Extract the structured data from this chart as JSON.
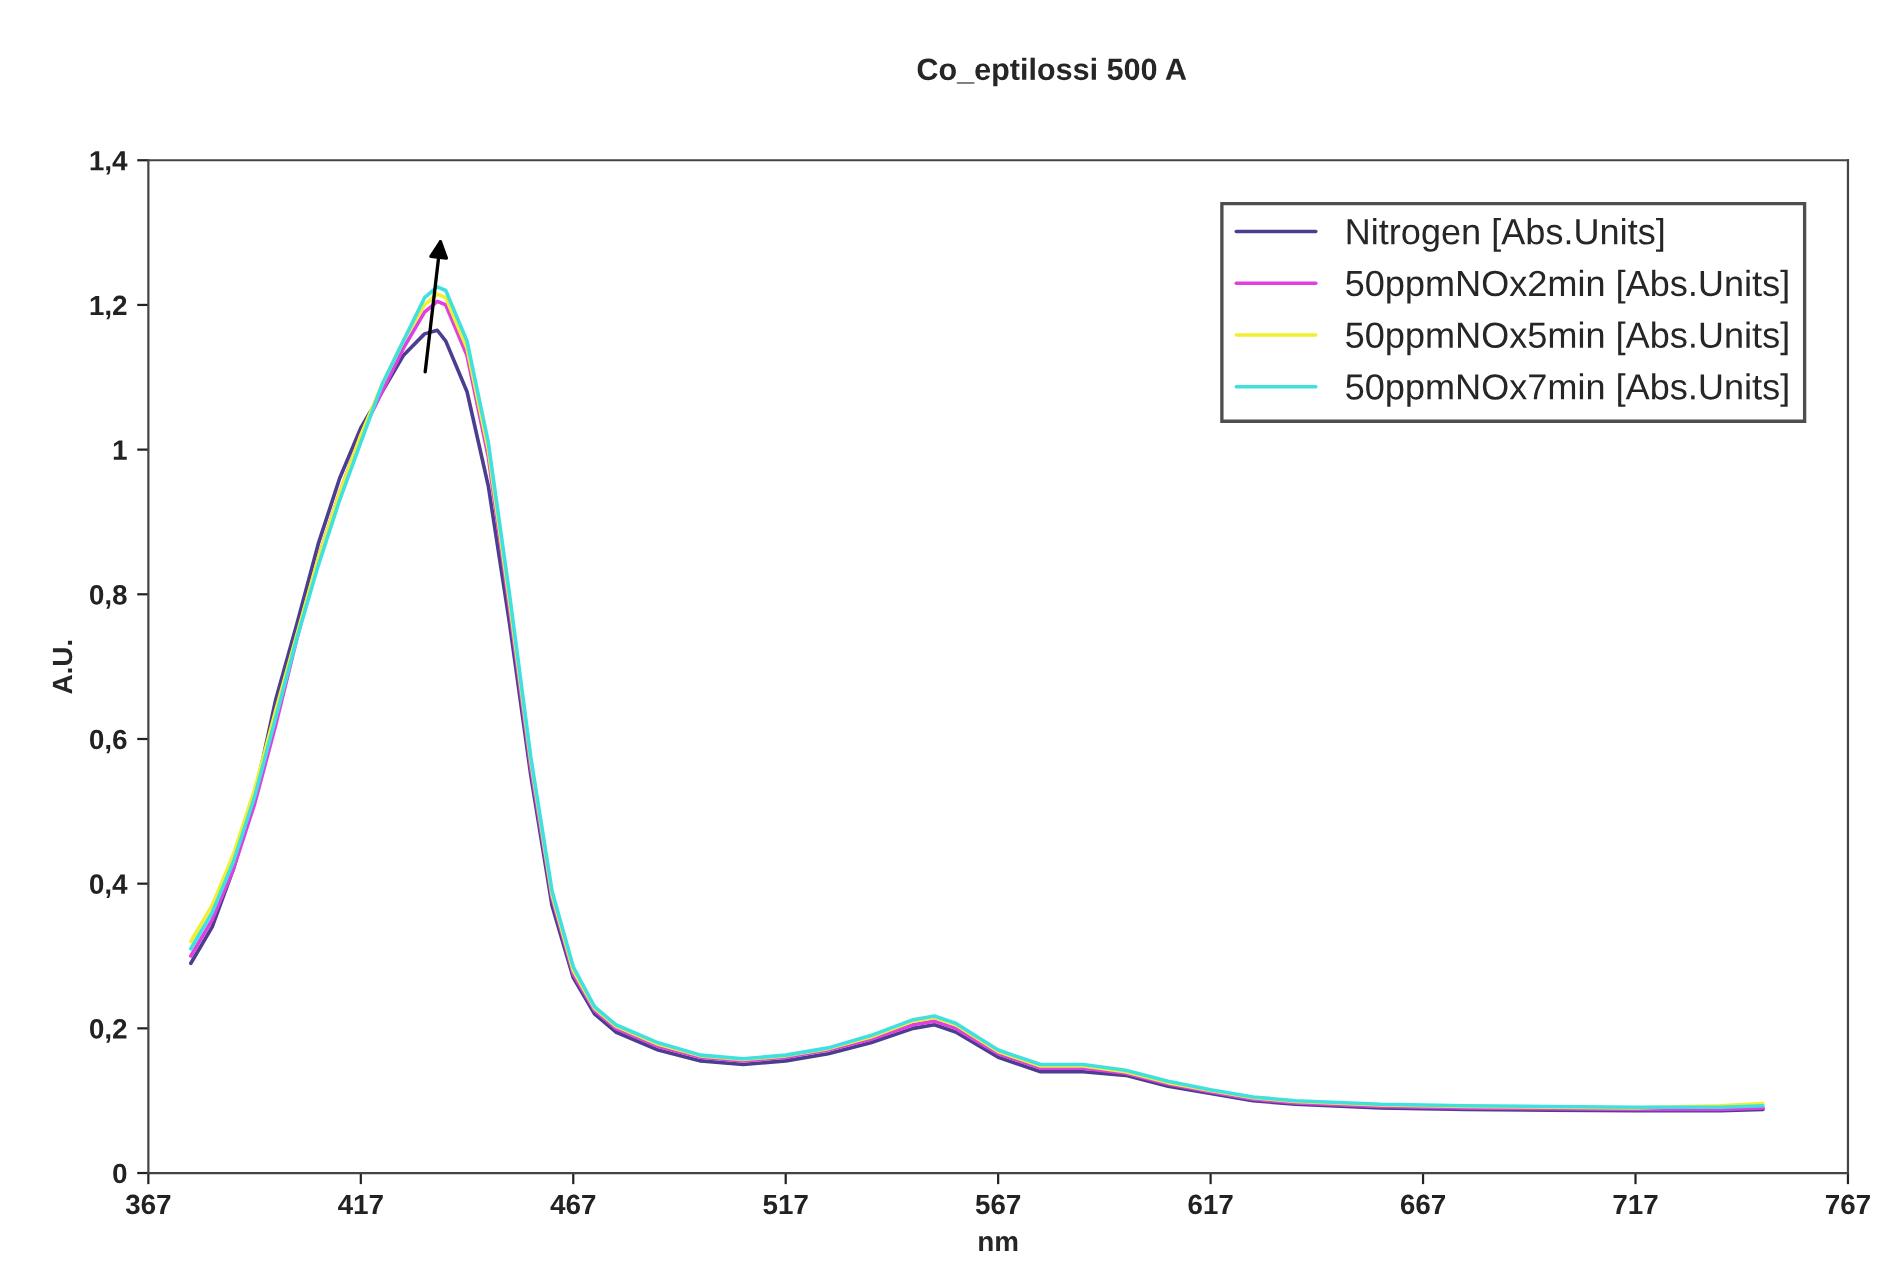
{
  "chart_data": {
    "type": "line",
    "title": "Co_eptilossi 500 A",
    "xlabel": "nm",
    "ylabel": "A.U.",
    "x": [
      377,
      382,
      387,
      392,
      397,
      402,
      407,
      412,
      417,
      422,
      427,
      432,
      435,
      437,
      442,
      447,
      452,
      457,
      462,
      467,
      472,
      477,
      487,
      497,
      507,
      517,
      527,
      537,
      547,
      552,
      557,
      567,
      577,
      587,
      597,
      607,
      617,
      627,
      637,
      657,
      677,
      697,
      717,
      737,
      747
    ],
    "series": [
      {
        "name": "Nitrogen [Abs.Units]",
        "color": "#4b3d8f",
        "values": [
          0.29,
          0.34,
          0.42,
          0.52,
          0.655,
          0.76,
          0.87,
          0.96,
          1.03,
          1.08,
          1.13,
          1.16,
          1.165,
          1.15,
          1.08,
          0.95,
          0.76,
          0.55,
          0.37,
          0.27,
          0.22,
          0.195,
          0.17,
          0.155,
          0.15,
          0.155,
          0.165,
          0.18,
          0.2,
          0.205,
          0.195,
          0.16,
          0.14,
          0.14,
          0.135,
          0.12,
          0.11,
          0.1,
          0.095,
          0.09,
          0.088,
          0.087,
          0.086,
          0.086,
          0.088
        ]
      },
      {
        "name": "50ppmNOx2min [Abs.Units]",
        "color": "#e040e0",
        "values": [
          0.3,
          0.35,
          0.42,
          0.51,
          0.62,
          0.74,
          0.85,
          0.94,
          1.02,
          1.08,
          1.14,
          1.19,
          1.205,
          1.2,
          1.13,
          0.99,
          0.78,
          0.56,
          0.38,
          0.275,
          0.225,
          0.2,
          0.175,
          0.16,
          0.155,
          0.16,
          0.17,
          0.185,
          0.205,
          0.21,
          0.2,
          0.165,
          0.145,
          0.145,
          0.138,
          0.123,
          0.112,
          0.102,
          0.097,
          0.092,
          0.09,
          0.089,
          0.088,
          0.088,
          0.09
        ]
      },
      {
        "name": "50ppmNOx5min [Abs.Units]",
        "color": "#f0f030",
        "values": [
          0.32,
          0.37,
          0.44,
          0.53,
          0.64,
          0.745,
          0.85,
          0.94,
          1.02,
          1.09,
          1.15,
          1.2,
          1.215,
          1.21,
          1.14,
          1.0,
          0.79,
          0.57,
          0.385,
          0.28,
          0.228,
          0.203,
          0.178,
          0.162,
          0.157,
          0.162,
          0.172,
          0.188,
          0.21,
          0.215,
          0.205,
          0.168,
          0.148,
          0.148,
          0.14,
          0.125,
          0.114,
          0.104,
          0.099,
          0.094,
          0.092,
          0.091,
          0.09,
          0.093,
          0.096
        ]
      },
      {
        "name": "50ppmNOx7min [Abs.Units]",
        "color": "#40e0e0",
        "values": [
          0.31,
          0.36,
          0.43,
          0.52,
          0.63,
          0.74,
          0.84,
          0.93,
          1.01,
          1.09,
          1.15,
          1.21,
          1.225,
          1.22,
          1.15,
          1.01,
          0.8,
          0.575,
          0.39,
          0.285,
          0.23,
          0.205,
          0.18,
          0.163,
          0.158,
          0.163,
          0.173,
          0.19,
          0.212,
          0.217,
          0.207,
          0.17,
          0.15,
          0.15,
          0.142,
          0.127,
          0.115,
          0.105,
          0.1,
          0.095,
          0.093,
          0.092,
          0.091,
          0.091,
          0.093
        ]
      }
    ],
    "xlim": [
      367,
      767
    ],
    "xticks": [
      367,
      417,
      467,
      517,
      567,
      617,
      667,
      717,
      767
    ],
    "ylim": [
      0,
      1.4
    ],
    "yticks": [
      0,
      {
        "value": 0.2,
        "label": "0,2"
      },
      {
        "value": 0.4,
        "label": "0,4"
      },
      {
        "value": 0.6,
        "label": "0,6"
      },
      {
        "value": 0.8,
        "label": "0,8"
      },
      1,
      {
        "value": 1.2,
        "label": "1,2"
      },
      {
        "value": 1.4,
        "label": "1,4"
      }
    ],
    "grid": false,
    "legend": "top right",
    "line_style": "solid",
    "marker": "none"
  }
}
